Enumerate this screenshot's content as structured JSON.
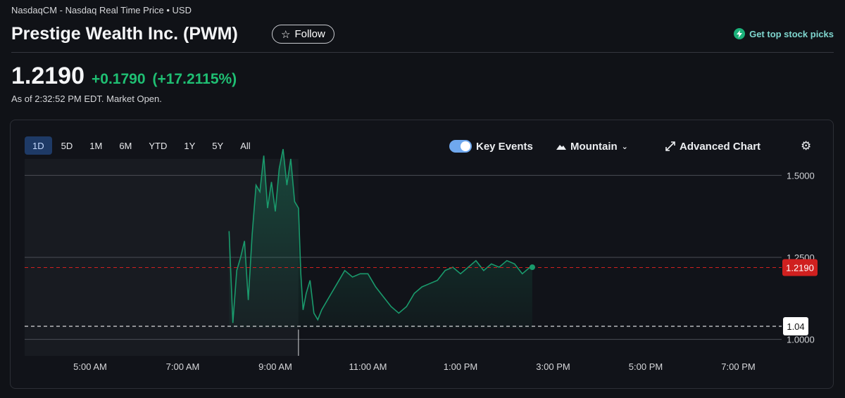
{
  "header": {
    "exchange": "NasdaqCM - Nasdaq Real Time Price • USD",
    "title": "Prestige Wealth Inc. (PWM)",
    "follow_label": "Follow",
    "top_picks_label": "Get top stock picks"
  },
  "quote": {
    "price": "1.2190",
    "change": "+0.1790",
    "change_pct": "(+17.2115%)",
    "as_of": "As of 2:32:52 PM EDT. Market Open."
  },
  "ranges": [
    "1D",
    "5D",
    "1M",
    "6M",
    "YTD",
    "1Y",
    "5Y",
    "All"
  ],
  "active_range": "1D",
  "controls": {
    "key_events_label": "Key Events",
    "key_events_on": true,
    "chart_type_label": "Mountain",
    "advanced_label": "Advanced Chart"
  },
  "colors": {
    "up": "#1fbf73",
    "line": "#1a9a6c",
    "current_badge": "#d0201f",
    "prev_close_badge": "#ffffff"
  },
  "chart_data": {
    "type": "area",
    "x_ticks": [
      "5:00 AM",
      "7:00 AM",
      "9:00 AM",
      "11:00 AM",
      "1:00 PM",
      "3:00 PM",
      "5:00 PM",
      "7:00 PM"
    ],
    "y_ticks": [
      "1.5000",
      "1.2500",
      "1.0000"
    ],
    "current_price_label": "1.2190",
    "previous_close_label": "1.04",
    "current_price": 1.219,
    "previous_close": 1.04,
    "x": [
      "8:00",
      "8:05",
      "8:10",
      "8:15",
      "8:20",
      "8:25",
      "8:30",
      "8:35",
      "8:40",
      "8:45",
      "8:50",
      "8:55",
      "9:00",
      "9:05",
      "9:10",
      "9:15",
      "9:20",
      "9:25",
      "9:30",
      "9:33",
      "9:36",
      "9:40",
      "9:45",
      "9:50",
      "9:55",
      "10:00",
      "10:10",
      "10:20",
      "10:30",
      "10:40",
      "10:50",
      "11:00",
      "11:10",
      "11:20",
      "11:30",
      "11:40",
      "11:50",
      "12:00",
      "12:10",
      "12:20",
      "12:30",
      "12:40",
      "12:50",
      "13:00",
      "13:10",
      "13:20",
      "13:30",
      "13:40",
      "13:50",
      "14:00",
      "14:10",
      "14:20",
      "14:30",
      "14:33"
    ],
    "y": [
      1.33,
      1.05,
      1.21,
      1.25,
      1.3,
      1.12,
      1.32,
      1.47,
      1.45,
      1.56,
      1.4,
      1.48,
      1.39,
      1.52,
      1.58,
      1.47,
      1.55,
      1.42,
      1.4,
      1.2,
      1.09,
      1.14,
      1.18,
      1.08,
      1.06,
      1.09,
      1.13,
      1.17,
      1.21,
      1.19,
      1.2,
      1.2,
      1.16,
      1.13,
      1.1,
      1.08,
      1.1,
      1.14,
      1.16,
      1.17,
      1.18,
      1.21,
      1.22,
      1.2,
      1.22,
      1.24,
      1.21,
      1.23,
      1.22,
      1.24,
      1.23,
      1.2,
      1.22,
      1.22
    ],
    "ylim": [
      0.95,
      1.55
    ],
    "grid": true
  }
}
